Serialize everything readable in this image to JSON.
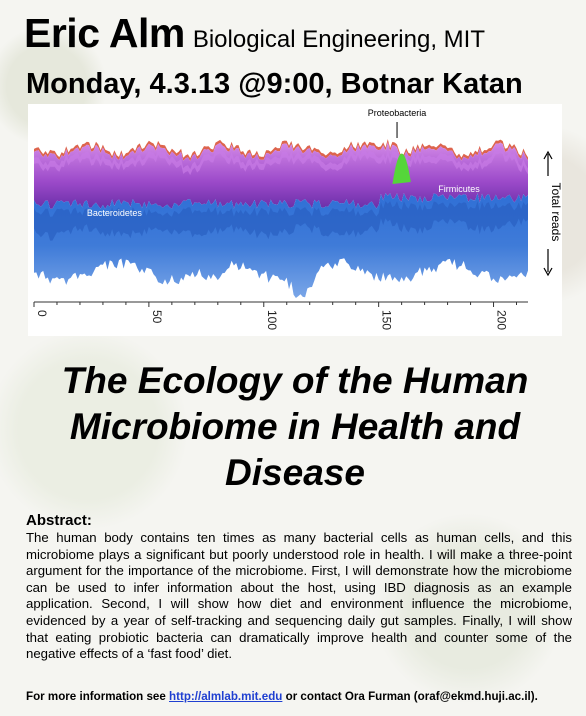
{
  "header": {
    "speaker_name": "Eric Alm",
    "affiliation": "Biological Engineering, MIT",
    "event": "Monday, 4.3.13 @9:00, Botnar Katan"
  },
  "chart_data": {
    "type": "area",
    "title": "",
    "xlabel": "",
    "ylabel": "Total reads",
    "xlim": [
      0,
      215
    ],
    "x_ticks": [
      "0",
      "50",
      "100",
      "150",
      "200"
    ],
    "series": [
      {
        "name": "Bacteroidetes"
      },
      {
        "name": "Firmicutes"
      },
      {
        "name": "Proteobacteria"
      }
    ],
    "colors": {
      "bacteroidetes": "#3f7bd8",
      "bacteroidetes_dark": "#2a5fc2",
      "firmicutes": "#9b49c9",
      "firmicutes_light": "#c77be6",
      "proteobacteria": "#55d63a",
      "minor": "#d9533a"
    }
  },
  "talk": {
    "title": "The Ecology of the Human Microbiome in Health and Disease"
  },
  "abstract": {
    "heading": "Abstract:",
    "body": "The human body contains ten times as many bacterial cells as human cells, and this microbiome plays a significant but poorly understood role in health. I will make a three-point argument for the importance of the microbiome. First, I will demonstrate how the microbiome can be used to infer information about the host, using IBD diagnosis as an example application. Second, I will show how diet and environment influence the microbiome, evidenced by a year of self-tracking and sequencing daily gut samples. Finally, I will show that eating probiotic bacteria can dramatically improve health and counter some of the negative effects of a ‘fast food’ diet."
  },
  "footer": {
    "prefix": "For more information see ",
    "link": "http://almlab.mit.edu",
    "middle": " or contact Ora Furman (oraf@ekmd.huji.ac.il)."
  }
}
